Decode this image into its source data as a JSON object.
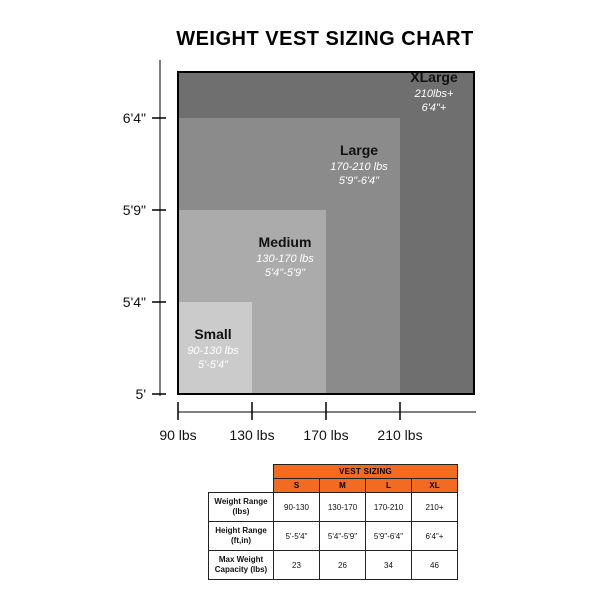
{
  "title": "WEIGHT VEST SIZING CHART",
  "colors": {
    "xlarge": "#6f6f6f",
    "large": "#8b8b8b",
    "medium": "#ababab",
    "small": "#cbcbcb",
    "text": "#111111",
    "italic_text": "#ffffff",
    "axis": "#000000",
    "table_header": "#f26b21"
  },
  "chart_data": {
    "type": "nested-area",
    "title": "WEIGHT VEST SIZING CHART",
    "x_ticks": [
      "90 lbs",
      "130 lbs",
      "170 lbs",
      "210 lbs"
    ],
    "y_ticks": [
      "5'",
      "5'4\"",
      "5'9\"",
      "6'4\""
    ],
    "x_range_lbs": [
      90,
      250
    ],
    "y_range_levels": [
      0,
      3.5
    ],
    "sizes": [
      {
        "name": "XLarge",
        "weight": "210lbs+",
        "height": "6'4\"+",
        "max_weight_lbs": 250,
        "max_height_level": 3.5
      },
      {
        "name": "Large",
        "weight": "170-210 lbs",
        "height": "5'9\"-6'4\"",
        "max_weight_lbs": 210,
        "max_height_level": 3
      },
      {
        "name": "Medium",
        "weight": "130-170 lbs",
        "height": "5'4\"-5'9\"",
        "max_weight_lbs": 170,
        "max_height_level": 2
      },
      {
        "name": "Small",
        "weight": "90-130 lbs",
        "height": "5'-5'4\"",
        "max_weight_lbs": 130,
        "max_height_level": 1
      }
    ]
  },
  "table": {
    "header": "VEST SIZING",
    "columns": [
      "S",
      "M",
      "L",
      "XL"
    ],
    "rows": [
      {
        "label": [
          "Weight Range",
          "(lbs)"
        ],
        "values": [
          "90-130",
          "130-170",
          "170-210",
          "210+"
        ]
      },
      {
        "label": [
          "Height Range",
          "(ft,in)"
        ],
        "values": [
          "5'-5'4\"",
          "5'4\"-5'9\"",
          "5'9\"-6'4\"",
          "6'4\"+"
        ]
      },
      {
        "label": [
          "Max Weight",
          "Capacity (lbs)"
        ],
        "values": [
          "23",
          "26",
          "34",
          "46"
        ]
      }
    ]
  }
}
